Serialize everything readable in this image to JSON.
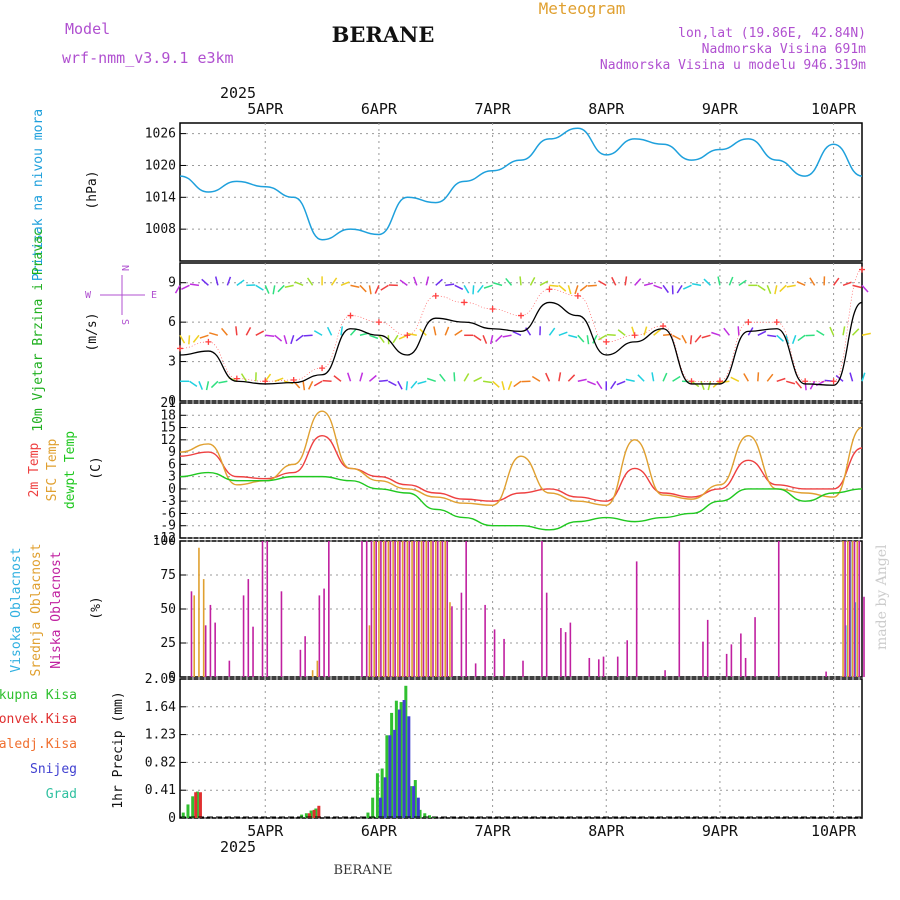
{
  "header": {
    "model_label": "Model",
    "model_name": "wrf-nmm_v3.9.1 e3km",
    "station": "BERANE",
    "product": "Meteogram",
    "coords": "lon,lat (19.86E, 42.84N)",
    "elevation": "Nadmorska Visina 691m",
    "model_elevation": "Nadmorska Visina u modelu 946.319m"
  },
  "time_axis": {
    "year": "2025",
    "days": [
      "5APR",
      "6APR",
      "7APR",
      "8APR",
      "9APR",
      "10APR"
    ]
  },
  "footer": {
    "station": "BERANE",
    "credit": "made by Angel"
  },
  "compass": {
    "n": "N",
    "s": "S",
    "e": "E",
    "w": "W"
  },
  "colors": {
    "pressure": "#1ea0dc",
    "wind_speed": "#000000",
    "gust": "#ff4040",
    "temp2m": "#ee4040",
    "sfc": "#e0a030",
    "dew": "#20c820",
    "high_cloud": "#30b0e0",
    "mid_cloud": "#e0a030",
    "low_cloud": "#c020a0",
    "total": "#30c030",
    "conv": "#e03030",
    "frozen": "#f07030",
    "snow": "#4040d0",
    "grad": "#30c0a0",
    "legend_accent": "#b050d0"
  },
  "chart_data": [
    {
      "type": "line",
      "name": "pressure",
      "ylabel": "Pritisak na nivou mora",
      "unit": "(hPa)",
      "yticks": [
        1008,
        1014,
        1020,
        1026
      ],
      "ylim": [
        1002,
        1028
      ],
      "x_hours": [
        0,
        6,
        12,
        18,
        24,
        30,
        36,
        42,
        48,
        54,
        60,
        66,
        72,
        78,
        84,
        90,
        96,
        102,
        108,
        114,
        120,
        126,
        132,
        138,
        144
      ],
      "values": [
        1018,
        1015,
        1017,
        1016,
        1014,
        1006,
        1008,
        1007,
        1014,
        1013,
        1017,
        1019,
        1021,
        1025,
        1027,
        1022,
        1025,
        1024,
        1021,
        1023,
        1025,
        1021,
        1018,
        1024,
        1018
      ]
    },
    {
      "type": "line",
      "name": "wind",
      "ylabel": "10m Vjetar Brzina i Pravac",
      "unit": "(m/s)",
      "yticks": [
        0,
        3,
        6,
        9
      ],
      "ylim": [
        0,
        10.5
      ],
      "x_hours": [
        0,
        6,
        12,
        18,
        24,
        30,
        36,
        42,
        48,
        54,
        60,
        66,
        72,
        78,
        84,
        90,
        96,
        102,
        108,
        114,
        120,
        126,
        132,
        138,
        144
      ],
      "series": [
        {
          "name": "speed",
          "values": [
            3.5,
            3.8,
            1.5,
            1.3,
            1.4,
            2,
            5.5,
            5,
            3.5,
            6.3,
            6,
            5.5,
            5.3,
            7.5,
            6.5,
            3.5,
            4.5,
            5.5,
            1.3,
            1.3,
            5.3,
            5.5,
            1.3,
            1.2,
            7.5
          ]
        },
        {
          "name": "gust",
          "values": [
            4,
            4.5,
            1.7,
            1.5,
            1.6,
            2.5,
            6.5,
            6,
            5,
            8,
            7.5,
            7,
            6.5,
            8.5,
            8,
            4.5,
            5,
            5.7,
            1.5,
            1.5,
            6,
            6,
            1.5,
            1.5,
            10
          ]
        }
      ],
      "arrow_bands": [
        1.5,
        5.0,
        8.8
      ]
    },
    {
      "type": "line",
      "name": "temperature",
      "ylabels": [
        "2m Temp",
        "SFC Temp",
        "dewpt Temp"
      ],
      "unit": "(C)",
      "yticks": [
        -12,
        -9,
        -6,
        -3,
        0,
        3,
        6,
        9,
        12,
        15,
        18,
        21
      ],
      "ylim": [
        -12,
        21
      ],
      "x_hours": [
        0,
        6,
        12,
        18,
        24,
        30,
        36,
        42,
        48,
        54,
        60,
        66,
        72,
        78,
        84,
        90,
        96,
        102,
        108,
        114,
        120,
        126,
        132,
        138,
        144
      ],
      "series": [
        {
          "name": "2m Temp",
          "values": [
            8,
            9,
            3,
            2.5,
            4,
            13,
            5,
            3,
            1,
            -1,
            -2.5,
            -3,
            -1,
            0,
            -2,
            -3,
            5,
            -1,
            -2,
            0,
            7,
            1,
            0,
            0,
            10
          ]
        },
        {
          "name": "SFC Temp",
          "values": [
            9,
            11,
            1,
            2,
            6,
            19,
            5,
            2,
            0,
            -2,
            -3.5,
            -4,
            8,
            -1,
            -3,
            -4,
            12,
            -1.5,
            -2.5,
            1,
            13,
            0,
            -1,
            -2,
            15
          ]
        },
        {
          "name": "dewpt Temp",
          "values": [
            3,
            4,
            2,
            2,
            3,
            3,
            2,
            0,
            -1,
            -5,
            -7,
            -9,
            -9,
            -10,
            -8,
            -7,
            -8,
            -7,
            -6,
            -3,
            0,
            0,
            -3,
            -1,
            0
          ]
        }
      ]
    },
    {
      "type": "bar",
      "name": "clouds",
      "ylabels": [
        "Visoka Oblacnost",
        "Srednja Oblacnost",
        "Niska Oblacnost"
      ],
      "unit": "(%)",
      "yticks": [
        0,
        25,
        50,
        75,
        100
      ],
      "ylim": [
        0,
        100
      ],
      "high": {
        "hours": [
          141,
          142,
          143
        ],
        "values": [
          38,
          100,
          55
        ]
      },
      "mid": {
        "hours": [
          3,
          4,
          5,
          28,
          29,
          40,
          41,
          42,
          43,
          44,
          45,
          46,
          47,
          48,
          49,
          50,
          51,
          52,
          53,
          54,
          55,
          56,
          57,
          140,
          141,
          142,
          143
        ],
        "values": [
          60,
          95,
          72,
          5,
          12,
          38,
          100,
          100,
          100,
          100,
          100,
          100,
          100,
          100,
          100,
          100,
          100,
          100,
          100,
          100,
          100,
          100,
          55,
          100,
          100,
          100,
          100
        ]
      },
      "low": {
        "hours": [
          2,
          5,
          6,
          7,
          10,
          13,
          14,
          15,
          17,
          18,
          21,
          25,
          26,
          29,
          30,
          31,
          38,
          39,
          40,
          41,
          42,
          43,
          44,
          45,
          46,
          47,
          48,
          49,
          50,
          51,
          52,
          53,
          54,
          55,
          56,
          57,
          59,
          60,
          62,
          64,
          66,
          68,
          72,
          76,
          77,
          80,
          81,
          82,
          86,
          88,
          89,
          92,
          94,
          96,
          102,
          105,
          110,
          111,
          115,
          116,
          118,
          119,
          121,
          126,
          136,
          140,
          141,
          142,
          143,
          144
        ],
        "values": [
          63,
          38,
          53,
          40,
          12,
          60,
          72,
          37,
          100,
          100,
          63,
          20,
          30,
          60,
          65,
          100,
          100,
          100,
          100,
          100,
          100,
          100,
          100,
          100,
          100,
          100,
          100,
          100,
          100,
          100,
          100,
          100,
          100,
          100,
          100,
          52,
          62,
          100,
          10,
          53,
          35,
          28,
          12,
          100,
          62,
          36,
          33,
          40,
          14,
          13,
          15,
          15,
          27,
          85,
          5,
          100,
          26,
          42,
          17,
          24,
          32,
          14,
          44,
          100,
          4,
          100,
          100,
          100,
          100,
          59
        ]
      }
    },
    {
      "type": "bar",
      "name": "precipitation",
      "ylabels": [
        "Ukupna Kisa",
        "Konvek.Kisa",
        "Zaledj.Kisa",
        "Snijeg",
        "Grad"
      ],
      "unit": "1hr Precip (mm)",
      "yticks": [
        0,
        0.41,
        0.82,
        1.23,
        1.64,
        2.05
      ],
      "ylim": [
        0,
        2.05
      ],
      "total": {
        "hours": [
          1,
          2,
          3,
          4,
          26,
          27,
          28,
          29,
          40,
          41,
          42,
          43,
          44,
          45,
          46,
          47,
          48,
          49,
          50,
          51,
          52,
          53,
          54
        ],
        "values": [
          0.08,
          0.2,
          0.32,
          0.39,
          0.05,
          0.07,
          0.11,
          0.14,
          0.08,
          0.3,
          0.66,
          0.73,
          1.22,
          1.55,
          1.73,
          1.71,
          1.95,
          0.47,
          0.56,
          0.12,
          0.07,
          0.04,
          0.01
        ]
      },
      "conv": {
        "hours": [
          3,
          4,
          27,
          28,
          29
        ],
        "values": [
          0.38,
          0.38,
          0.07,
          0.12,
          0.18
        ]
      },
      "snow": {
        "hours": [
          42,
          43,
          44,
          45,
          46,
          47,
          48,
          49,
          50
        ],
        "values": [
          0.3,
          0.6,
          1.22,
          1.3,
          1.6,
          1.74,
          1.5,
          0.47,
          0.3
        ]
      }
    }
  ]
}
